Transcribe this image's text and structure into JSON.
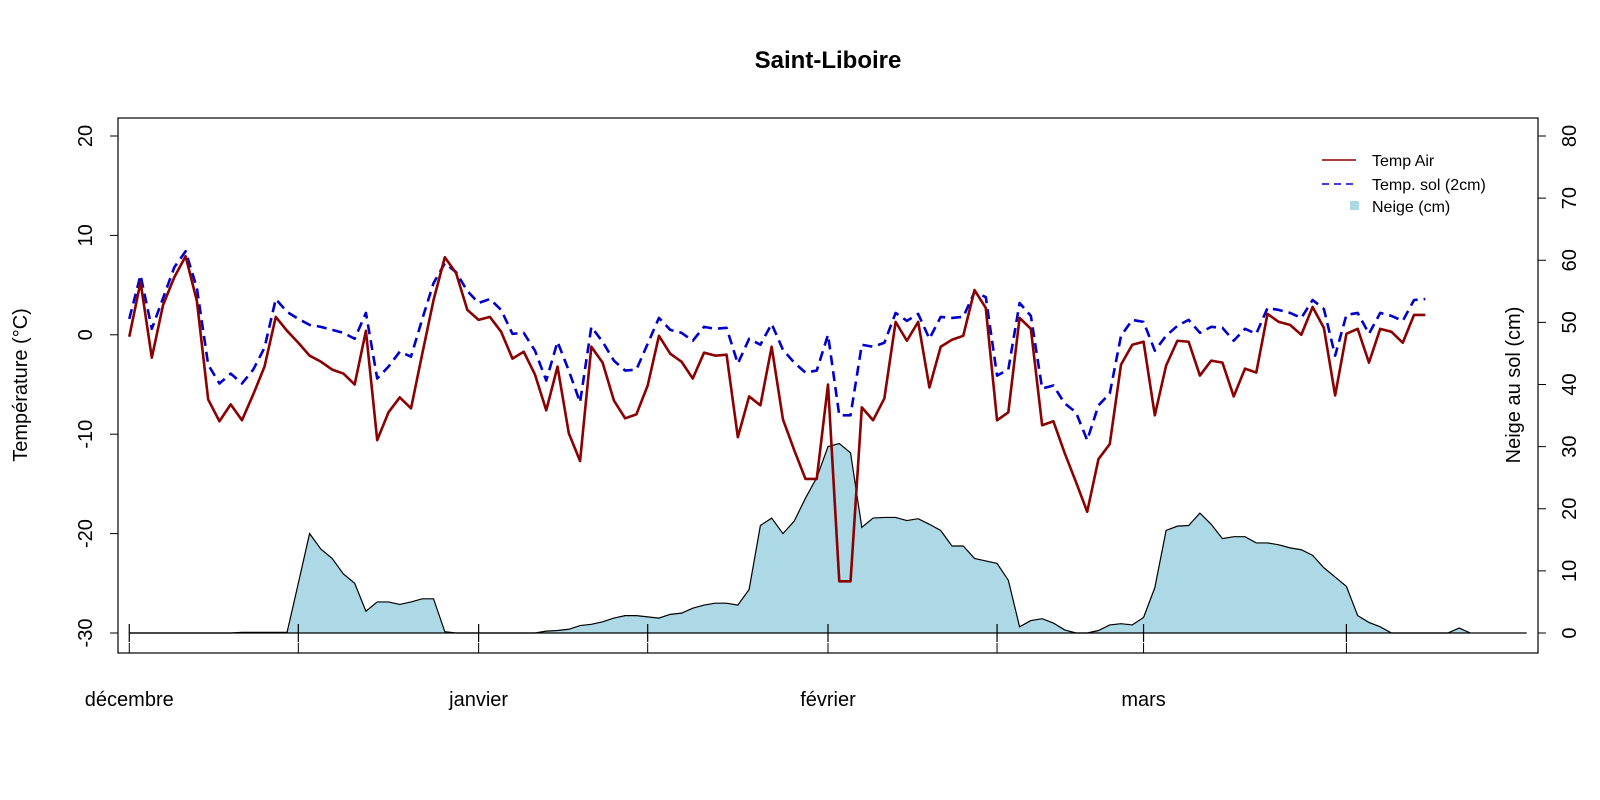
{
  "chart_data": {
    "type": "line",
    "title": "Saint-Liboire",
    "ylabel": "Température (°C)",
    "y2label": "Neige au sol (cm)",
    "ylim": [
      -30,
      20
    ],
    "y2lim": [
      0,
      80
    ],
    "yticks": [
      "-30",
      "-20",
      "-10",
      "0",
      "10",
      "20"
    ],
    "y2ticks": [
      "0",
      "10",
      "20",
      "30",
      "40",
      "50",
      "60",
      "70",
      "80"
    ],
    "x_day_range": [
      -1,
      125
    ],
    "month_labels": [
      {
        "label": "décembre",
        "day": 0
      },
      {
        "label": "janvier",
        "day": 31
      },
      {
        "label": "février",
        "day": 62
      },
      {
        "label": "mars",
        "day": 90
      }
    ],
    "x_tick_days": [
      0,
      15,
      31,
      46,
      62,
      77,
      90,
      108
    ],
    "grid": false,
    "legend_position": "top-right",
    "series": [
      {
        "name": "Temp Air",
        "axis": "left",
        "color": "#8b0000",
        "style": "solid",
        "values": [
          -0.2,
          5.3,
          -2.3,
          3.0,
          5.8,
          7.9,
          3.4,
          -6.5,
          -8.7,
          -7.0,
          -8.6,
          -6.0,
          -3.2,
          1.8,
          0.4,
          -0.8,
          -2.1,
          -2.7,
          -3.5,
          -3.9,
          -5.0,
          0.4,
          -10.6,
          -7.8,
          -6.3,
          -7.4,
          -1.9,
          3.5,
          7.8,
          6.2,
          2.5,
          1.5,
          1.8,
          0.3,
          -2.4,
          -1.7,
          -4.0,
          -7.6,
          -3.2,
          -9.9,
          -12.7,
          -1.2,
          -2.8,
          -6.6,
          -8.4,
          -8.0,
          -5.1,
          -0.1,
          -1.9,
          -2.7,
          -4.4,
          -1.8,
          -2.1,
          -2.0,
          -10.3,
          -6.2,
          -7.1,
          -1.2,
          -8.5,
          -11.6,
          -14.5,
          -14.5,
          -5.0,
          -24.8,
          -24.8,
          -7.3,
          -8.6,
          -6.4,
          1.3,
          -0.6,
          1.3,
          -5.3,
          -1.2,
          -0.5,
          -0.1,
          4.5,
          2.7,
          -8.6,
          -7.8,
          1.7,
          0.6,
          -9.1,
          -8.7,
          -11.9,
          -14.8,
          -17.8,
          -12.5,
          -11.0,
          -3.0,
          -1.0,
          -0.7,
          -8.1,
          -3.1,
          -0.6,
          -0.7,
          -4.1,
          -2.6,
          -2.8,
          -6.2,
          -3.4,
          -3.8,
          2.1,
          1.3,
          1.0,
          0.0,
          2.8,
          0.7,
          -6.1,
          0.1,
          0.6,
          -2.8,
          0.6,
          0.3,
          -0.8,
          2.0,
          2.0
        ]
      },
      {
        "name": "Temp. sol (2cm)",
        "axis": "left",
        "color": "#0000cd",
        "style": "dashed",
        "values": [
          1.6,
          6.0,
          0.6,
          3.7,
          6.8,
          8.4,
          4.7,
          -3.0,
          -4.9,
          -3.9,
          -4.9,
          -3.5,
          -1.3,
          3.6,
          2.3,
          1.6,
          1.0,
          0.8,
          0.5,
          0.2,
          -0.4,
          2.2,
          -4.4,
          -3.2,
          -1.7,
          -2.2,
          1.6,
          5.2,
          7.2,
          6.3,
          4.4,
          3.2,
          3.6,
          2.5,
          0.1,
          0.2,
          -1.6,
          -4.6,
          -0.7,
          -3.6,
          -6.8,
          0.8,
          -0.7,
          -2.6,
          -3.6,
          -3.5,
          -0.9,
          1.7,
          0.5,
          0.2,
          -0.6,
          0.8,
          0.6,
          0.7,
          -2.9,
          -0.4,
          -1.0,
          1.1,
          -1.5,
          -2.8,
          -3.8,
          -3.6,
          0.0,
          -8.1,
          -8.1,
          -1.0,
          -1.2,
          -0.8,
          2.2,
          1.4,
          2.1,
          -0.4,
          1.8,
          1.7,
          1.8,
          4.3,
          3.8,
          -4.1,
          -3.5,
          3.2,
          1.9,
          -5.4,
          -5.1,
          -6.9,
          -7.8,
          -10.6,
          -7.1,
          -5.9,
          -0.1,
          1.5,
          1.3,
          -1.6,
          -0.1,
          0.9,
          1.5,
          0.2,
          0.8,
          0.7,
          -0.6,
          0.6,
          0.1,
          2.7,
          2.5,
          2.2,
          1.7,
          3.5,
          2.6,
          -2.1,
          2.0,
          2.2,
          0.1,
          2.2,
          1.9,
          1.4,
          3.5,
          3.6
        ]
      },
      {
        "name": "Neige (cm)",
        "axis": "right",
        "type": "area",
        "color": "#add8e6",
        "values": [
          0,
          0,
          0,
          0,
          0,
          0,
          0,
          0,
          0,
          0,
          0.1,
          0.1,
          0.1,
          0.1,
          0.1,
          8,
          16,
          13.5,
          12,
          9.5,
          8,
          3.5,
          5,
          5,
          4.6,
          5,
          5.5,
          5.5,
          0.2,
          0,
          0,
          0,
          0,
          0,
          0,
          0,
          0,
          0.3,
          0.4,
          0.6,
          1.2,
          1.4,
          1.8,
          2.4,
          2.8,
          2.8,
          2.6,
          2.4,
          3,
          3.2,
          4,
          4.5,
          4.8,
          4.8,
          4.5,
          7,
          17.3,
          18.5,
          16,
          18,
          21.7,
          25,
          30,
          30.5,
          29,
          17,
          18.5,
          18.6,
          18.6,
          18.1,
          18.4,
          17.5,
          16.5,
          14,
          14,
          12,
          11.6,
          11.2,
          8.5,
          1,
          2,
          2.3,
          1.6,
          0.5,
          0,
          0,
          0.4,
          1.3,
          1.5,
          1.3,
          2.5,
          7.3,
          16.5,
          17.2,
          17.3,
          19.3,
          17.5,
          15.2,
          15.5,
          15.5,
          14.5,
          14.5,
          14.2,
          13.7,
          13.4,
          12.5,
          10.5,
          9,
          7.5,
          2.8,
          1.7,
          1,
          0,
          0,
          0,
          0,
          0,
          0,
          0.8,
          0
        ]
      }
    ]
  }
}
